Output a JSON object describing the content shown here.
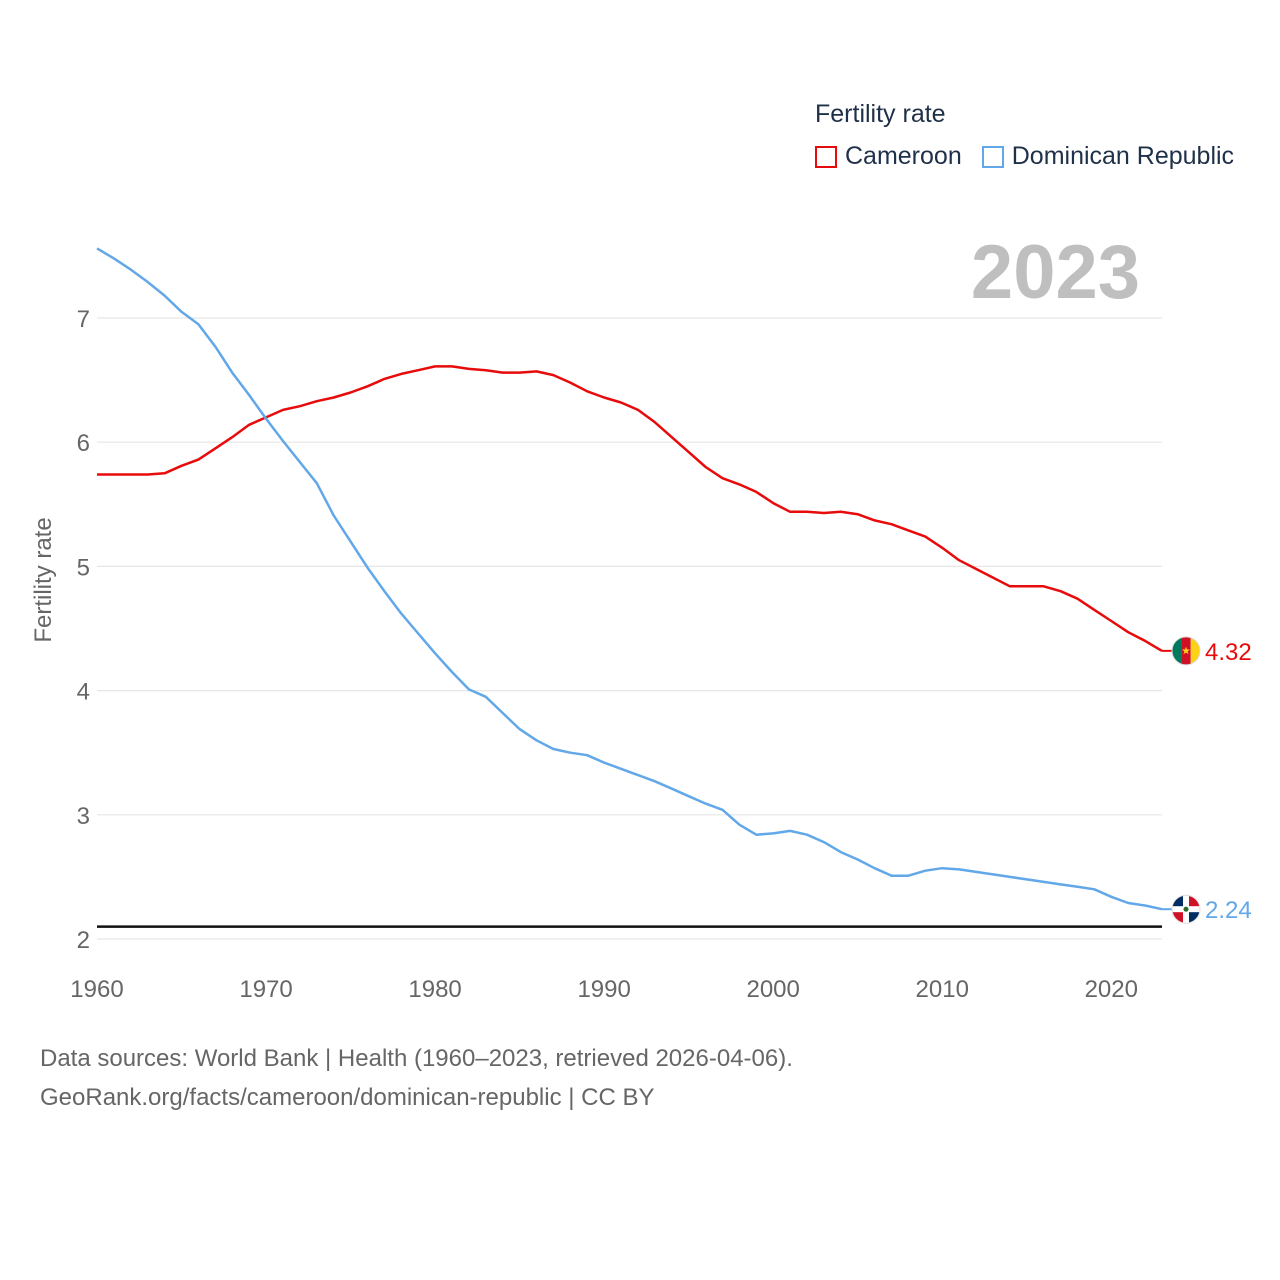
{
  "legend": {
    "title": "Fertility rate"
  },
  "big_year": "2023",
  "footer": {
    "line1": "Data sources: World Bank | Health (1960–2023, retrieved 2026-04-06).",
    "line2": "GeoRank.org/facts/cameroon/dominican-republic | CC BY"
  },
  "chart_data": {
    "type": "line",
    "title": "Fertility rate",
    "xlabel": "",
    "ylabel": "Fertility rate",
    "xlim": [
      1960,
      2023
    ],
    "ylim": [
      2,
      7.5
    ],
    "x_ticks": [
      1960,
      1970,
      1980,
      1990,
      2000,
      2010,
      2020
    ],
    "y_ticks": [
      2,
      3,
      4,
      5,
      6,
      7
    ],
    "reference_line": 2.1,
    "x": [
      1960,
      1961,
      1962,
      1963,
      1964,
      1965,
      1966,
      1967,
      1968,
      1969,
      1970,
      1971,
      1972,
      1973,
      1974,
      1975,
      1976,
      1977,
      1978,
      1979,
      1980,
      1981,
      1982,
      1983,
      1984,
      1985,
      1986,
      1987,
      1988,
      1989,
      1990,
      1991,
      1992,
      1993,
      1994,
      1995,
      1996,
      1997,
      1998,
      1999,
      2000,
      2001,
      2002,
      2003,
      2004,
      2005,
      2006,
      2007,
      2008,
      2009,
      2010,
      2011,
      2012,
      2013,
      2014,
      2015,
      2016,
      2017,
      2018,
      2019,
      2020,
      2021,
      2022,
      2023
    ],
    "series": [
      {
        "name": "Cameroon",
        "color": "#e80b0b",
        "end_label": "4.32",
        "values": [
          5.74,
          5.74,
          5.74,
          5.74,
          5.75,
          5.81,
          5.86,
          5.95,
          6.04,
          6.14,
          6.2,
          6.26,
          6.29,
          6.33,
          6.36,
          6.4,
          6.45,
          6.51,
          6.55,
          6.58,
          6.61,
          6.61,
          6.59,
          6.58,
          6.56,
          6.56,
          6.57,
          6.54,
          6.48,
          6.41,
          6.36,
          6.32,
          6.26,
          6.16,
          6.04,
          5.92,
          5.8,
          5.71,
          5.66,
          5.6,
          5.51,
          5.44,
          5.44,
          5.43,
          5.44,
          5.42,
          5.37,
          5.34,
          5.29,
          5.24,
          5.15,
          5.05,
          4.98,
          4.91,
          4.84,
          4.84,
          4.84,
          4.8,
          4.74,
          4.65,
          4.56,
          4.47,
          4.4,
          4.32
        ]
      },
      {
        "name": "Dominican Republic",
        "color": "#62a8e8",
        "end_label": "2.24",
        "values": [
          7.56,
          7.48,
          7.39,
          7.29,
          7.18,
          7.05,
          6.95,
          6.77,
          6.56,
          6.38,
          6.19,
          6.01,
          5.84,
          5.67,
          5.41,
          5.2,
          4.99,
          4.8,
          4.62,
          4.46,
          4.3,
          4.15,
          4.01,
          3.95,
          3.82,
          3.69,
          3.6,
          3.53,
          3.5,
          3.48,
          3.42,
          3.37,
          3.32,
          3.27,
          3.21,
          3.15,
          3.09,
          3.04,
          2.92,
          2.84,
          2.85,
          2.87,
          2.84,
          2.78,
          2.7,
          2.64,
          2.57,
          2.51,
          2.51,
          2.55,
          2.57,
          2.56,
          2.54,
          2.52,
          2.5,
          2.48,
          2.46,
          2.44,
          2.42,
          2.4,
          2.34,
          2.29,
          2.27,
          2.24
        ]
      }
    ]
  }
}
